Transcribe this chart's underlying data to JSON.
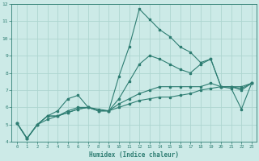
{
  "xlabel": "Humidex (Indice chaleur)",
  "bg_color": "#cceae7",
  "grid_color": "#add5d0",
  "line_color": "#2e7d72",
  "xlim": [
    -0.5,
    23.5
  ],
  "ylim": [
    4,
    12
  ],
  "xticks": [
    0,
    1,
    2,
    3,
    4,
    5,
    6,
    7,
    8,
    9,
    10,
    11,
    12,
    13,
    14,
    15,
    16,
    17,
    18,
    19,
    20,
    21,
    22,
    23
  ],
  "yticks": [
    4,
    5,
    6,
    7,
    8,
    9,
    10,
    11,
    12
  ],
  "lines": [
    {
      "x": [
        0,
        1,
        2,
        3,
        4,
        5,
        6,
        7,
        8,
        9,
        10,
        11,
        12,
        13,
        14,
        15,
        16,
        17,
        18,
        19,
        20,
        21,
        22,
        23
      ],
      "y": [
        5.1,
        4.2,
        5.0,
        5.5,
        5.8,
        6.5,
        6.7,
        6.0,
        5.9,
        5.8,
        7.8,
        9.5,
        11.7,
        11.1,
        10.5,
        10.1,
        9.5,
        9.2,
        8.6,
        8.8,
        7.2,
        7.1,
        5.9,
        7.4
      ]
    },
    {
      "x": [
        0,
        1,
        2,
        3,
        4,
        5,
        6,
        7,
        8,
        9,
        10,
        11,
        12,
        13,
        14,
        15,
        16,
        17,
        18,
        19,
        20,
        21,
        22,
        23
      ],
      "y": [
        5.1,
        4.2,
        5.0,
        5.5,
        5.5,
        5.8,
        6.0,
        6.0,
        5.8,
        5.8,
        6.5,
        7.5,
        8.5,
        9.0,
        8.8,
        8.5,
        8.2,
        8.0,
        8.5,
        8.8,
        7.2,
        7.2,
        7.2,
        7.4
      ]
    },
    {
      "x": [
        0,
        1,
        2,
        3,
        4,
        5,
        6,
        7,
        8,
        9,
        10,
        11,
        12,
        13,
        14,
        15,
        16,
        17,
        18,
        19,
        20,
        21,
        22,
        23
      ],
      "y": [
        5.1,
        4.2,
        5.0,
        5.5,
        5.5,
        5.7,
        5.9,
        6.0,
        5.8,
        5.8,
        6.2,
        6.5,
        6.8,
        7.0,
        7.2,
        7.2,
        7.2,
        7.2,
        7.2,
        7.4,
        7.2,
        7.2,
        7.0,
        7.4
      ]
    },
    {
      "x": [
        0,
        1,
        2,
        3,
        4,
        5,
        6,
        7,
        8,
        9,
        10,
        11,
        12,
        13,
        14,
        15,
        16,
        17,
        18,
        19,
        20,
        21,
        22,
        23
      ],
      "y": [
        5.1,
        4.2,
        5.0,
        5.3,
        5.5,
        5.7,
        5.9,
        6.0,
        5.8,
        5.8,
        6.0,
        6.2,
        6.4,
        6.5,
        6.6,
        6.6,
        6.7,
        6.8,
        7.0,
        7.1,
        7.2,
        7.2,
        7.1,
        7.4
      ]
    }
  ]
}
